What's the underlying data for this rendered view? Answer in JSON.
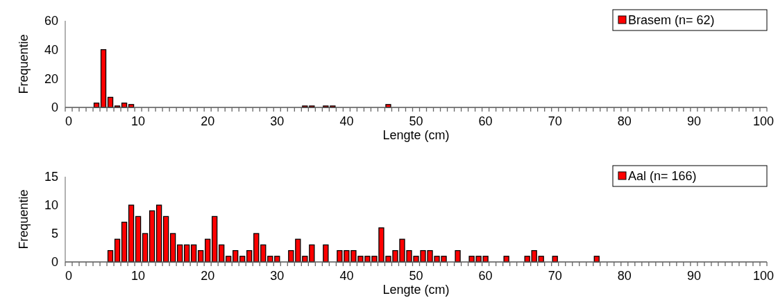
{
  "chart_data": [
    {
      "type": "bar",
      "categories": [
        "0",
        null,
        null,
        null,
        null,
        null,
        null,
        null,
        null,
        null,
        "10",
        null,
        null,
        null,
        null,
        null,
        null,
        null,
        null,
        null,
        "20",
        null,
        null,
        null,
        null,
        null,
        null,
        null,
        null,
        null,
        "30",
        null,
        null,
        null,
        null,
        null,
        null,
        null,
        null,
        null,
        "40",
        null,
        null,
        null,
        null,
        null,
        null,
        null,
        null,
        null,
        "50",
        null,
        null,
        null,
        null,
        null,
        null,
        null,
        null,
        null,
        "60",
        null,
        null,
        null,
        null,
        null,
        null,
        null,
        null,
        null,
        "70",
        null,
        null,
        null,
        null,
        null,
        null,
        null,
        null,
        null,
        "80",
        null,
        null,
        null,
        null,
        null,
        null,
        null,
        null,
        null,
        "90",
        null,
        null,
        null,
        null,
        null,
        null,
        null,
        null,
        null,
        "100"
      ],
      "series": [
        {
          "name": "Brasem (n= 62)",
          "color": "#ff0000",
          "values": [
            0,
            0,
            0,
            0,
            3,
            40,
            7,
            1,
            3,
            2,
            0,
            0,
            0,
            0,
            0,
            0,
            0,
            0,
            0,
            0,
            0,
            0,
            0,
            0,
            0,
            0,
            0,
            0,
            0,
            0,
            0,
            0,
            0,
            0,
            1,
            1,
            0,
            1,
            1,
            0,
            0,
            0,
            0,
            0,
            0,
            0,
            2,
            0,
            0,
            0,
            0,
            0,
            0,
            0,
            0,
            0,
            0,
            0,
            0,
            0,
            0,
            0,
            0,
            0,
            0,
            0,
            0,
            0,
            0,
            0,
            0,
            0,
            0,
            0,
            0,
            0,
            0,
            0,
            0,
            0,
            0,
            0,
            0,
            0,
            0,
            0,
            0,
            0,
            0,
            0,
            0,
            0,
            0,
            0,
            0,
            0,
            0,
            0,
            0,
            0,
            0
          ]
        }
      ],
      "xlabel": "Lengte (cm)",
      "ylabel": "Frequentie",
      "ylim": [
        0,
        60
      ],
      "yticks": [
        0,
        20,
        40,
        60
      ],
      "legend": "top right",
      "grid": false
    },
    {
      "type": "bar",
      "categories": [
        "0",
        null,
        null,
        null,
        null,
        null,
        null,
        null,
        null,
        null,
        "10",
        null,
        null,
        null,
        null,
        null,
        null,
        null,
        null,
        null,
        "20",
        null,
        null,
        null,
        null,
        null,
        null,
        null,
        null,
        null,
        "30",
        null,
        null,
        null,
        null,
        null,
        null,
        null,
        null,
        null,
        "40",
        null,
        null,
        null,
        null,
        null,
        null,
        null,
        null,
        null,
        "50",
        null,
        null,
        null,
        null,
        null,
        null,
        null,
        null,
        null,
        "60",
        null,
        null,
        null,
        null,
        null,
        null,
        null,
        null,
        null,
        "70",
        null,
        null,
        null,
        null,
        null,
        null,
        null,
        null,
        null,
        "80",
        null,
        null,
        null,
        null,
        null,
        null,
        null,
        null,
        null,
        "90",
        null,
        null,
        null,
        null,
        null,
        null,
        null,
        null,
        null,
        "100"
      ],
      "series": [
        {
          "name": "Aal (n= 166)",
          "color": "#ff0000",
          "values": [
            0,
            0,
            0,
            0,
            0,
            0,
            2,
            4,
            7,
            10,
            8,
            5,
            9,
            10,
            8,
            5,
            3,
            3,
            3,
            2,
            4,
            8,
            3,
            1,
            2,
            1,
            2,
            5,
            3,
            1,
            1,
            0,
            2,
            4,
            1,
            3,
            0,
            3,
            0,
            2,
            2,
            2,
            1,
            1,
            1,
            6,
            1,
            2,
            4,
            2,
            1,
            2,
            2,
            1,
            1,
            0,
            2,
            0,
            1,
            1,
            1,
            0,
            0,
            1,
            0,
            0,
            1,
            2,
            1,
            0,
            1,
            0,
            0,
            0,
            0,
            0,
            1,
            0,
            0,
            0,
            0,
            0,
            0,
            0,
            0,
            0,
            0,
            0,
            0,
            0,
            0,
            0,
            0,
            0,
            0,
            0,
            0,
            0,
            0,
            0,
            0
          ]
        }
      ],
      "xlabel": "Lengte (cm)",
      "ylabel": "Frequentie",
      "ylim": [
        0,
        15
      ],
      "yticks": [
        0,
        5,
        10,
        15
      ],
      "legend": "top right",
      "grid": false
    }
  ]
}
